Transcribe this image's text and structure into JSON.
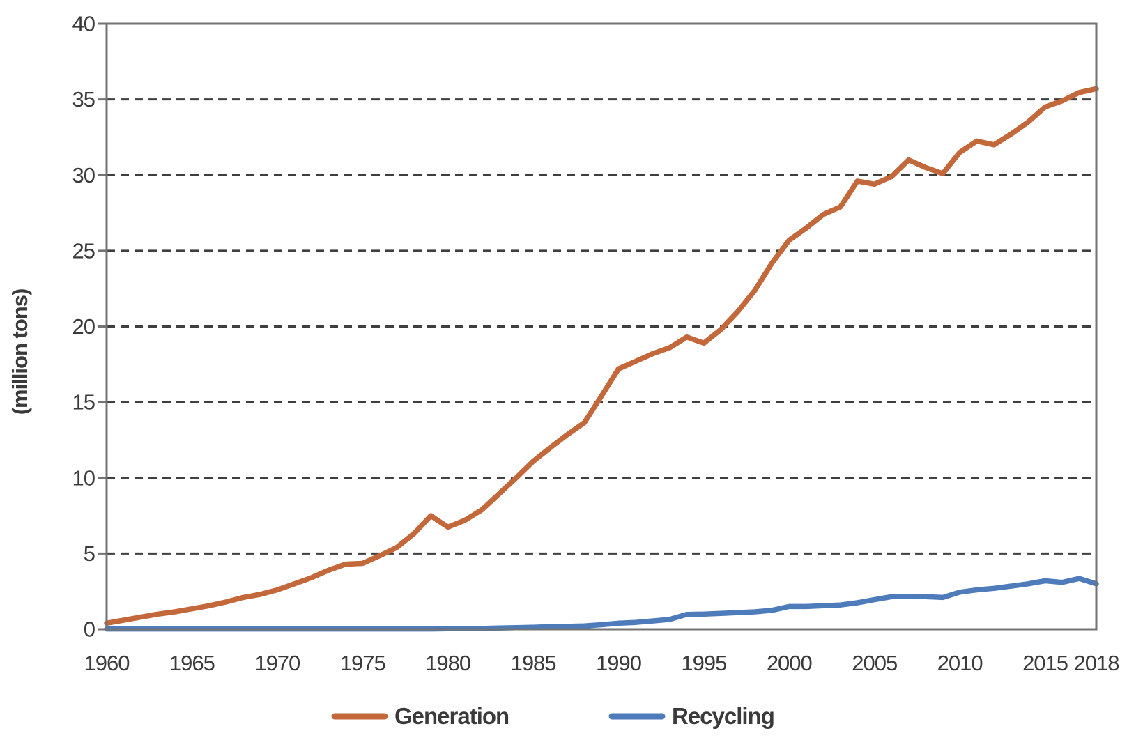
{
  "chart_data": {
    "type": "line",
    "title": "",
    "xlabel": "",
    "ylabel": "(million tons)",
    "ylim": [
      0,
      40
    ],
    "ytick_interval": 5,
    "xlim": [
      1960,
      2018
    ],
    "xticks": [
      1960,
      1965,
      1970,
      1975,
      1980,
      1985,
      1990,
      1995,
      2000,
      2005,
      2010,
      2015,
      2018
    ],
    "grid": "horizontal dashed gridlines at every 5 units, full box border",
    "legend_position": "bottom-center",
    "colors": {
      "generation": "#C2683A",
      "recycling": "#4E7CBB",
      "gridline": "#3f3f3f",
      "axis_box": "#737373",
      "text": "#3a3a3a",
      "background": "#ffffff"
    },
    "x": [
      1960,
      1961,
      1962,
      1963,
      1964,
      1965,
      1966,
      1967,
      1968,
      1969,
      1970,
      1971,
      1972,
      1973,
      1974,
      1975,
      1976,
      1977,
      1978,
      1979,
      1980,
      1981,
      1982,
      1983,
      1984,
      1985,
      1986,
      1987,
      1988,
      1989,
      1990,
      1991,
      1992,
      1993,
      1994,
      1995,
      1996,
      1997,
      1998,
      1999,
      2000,
      2001,
      2002,
      2003,
      2004,
      2005,
      2006,
      2007,
      2008,
      2009,
      2010,
      2011,
      2012,
      2013,
      2014,
      2015,
      2016,
      2017,
      2018
    ],
    "series": [
      {
        "name": "Generation",
        "color": "#C2683A",
        "values": [
          0.4,
          0.6,
          0.8,
          1.0,
          1.15,
          1.35,
          1.55,
          1.8,
          2.1,
          2.3,
          2.6,
          3.0,
          3.4,
          3.9,
          4.3,
          4.35,
          4.85,
          5.4,
          6.3,
          7.5,
          6.75,
          7.2,
          7.9,
          8.95,
          10.0,
          11.1,
          12.0,
          12.85,
          13.65,
          15.4,
          17.2,
          17.7,
          18.2,
          18.6,
          19.3,
          18.9,
          19.8,
          21.0,
          22.4,
          24.2,
          25.7,
          26.5,
          27.4,
          27.9,
          29.6,
          29.4,
          29.9,
          31.0,
          30.5,
          30.1,
          31.5,
          32.25,
          32.0,
          32.7,
          33.5,
          34.5,
          34.9,
          35.45,
          35.7
        ]
      },
      {
        "name": "Recycling",
        "color": "#4E7CBB",
        "values": [
          0.02,
          0.02,
          0.02,
          0.02,
          0.02,
          0.02,
          0.02,
          0.02,
          0.02,
          0.02,
          0.02,
          0.02,
          0.02,
          0.02,
          0.02,
          0.02,
          0.02,
          0.02,
          0.02,
          0.02,
          0.03,
          0.04,
          0.05,
          0.08,
          0.1,
          0.13,
          0.17,
          0.19,
          0.22,
          0.3,
          0.4,
          0.45,
          0.55,
          0.65,
          0.98,
          1.0,
          1.05,
          1.1,
          1.15,
          1.25,
          1.5,
          1.5,
          1.55,
          1.6,
          1.75,
          1.95,
          2.15,
          2.15,
          2.15,
          2.1,
          2.45,
          2.6,
          2.7,
          2.85,
          3.0,
          3.2,
          3.1,
          3.35,
          3.0
        ]
      }
    ],
    "legend": [
      "Generation",
      "Recycling"
    ]
  }
}
